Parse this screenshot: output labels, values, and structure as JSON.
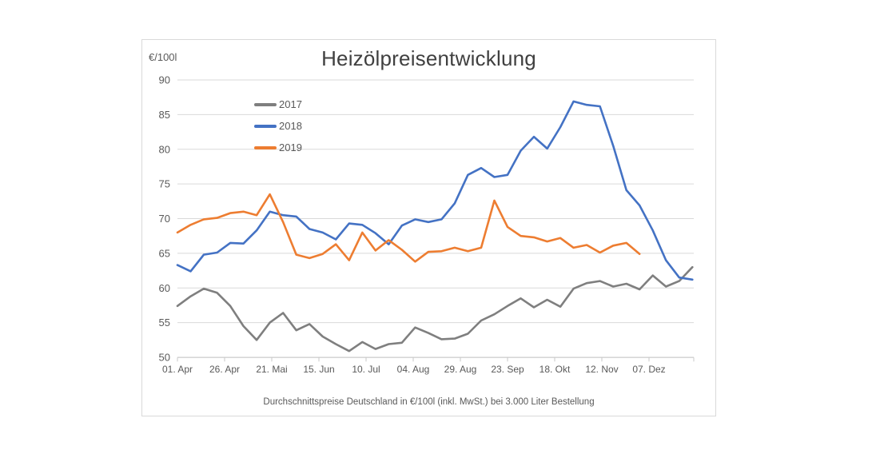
{
  "chart": {
    "background": "#ffffff",
    "card_border_color": "#d9d9d9",
    "gridline_color": "#d9d9d9",
    "text_color": "#595959",
    "title_color": "#404040"
  },
  "chart_data": {
    "type": "line",
    "title": "Heizölpreisentwicklung",
    "y_unit": "€/100l",
    "caption": "Durchschnittspreise Deutschland in €/100l (inkl. MwSt.) bei 3.000 Liter Bestellung",
    "xlabel": "",
    "ylabel": "€/100l",
    "ylim": [
      50,
      90
    ],
    "grid": true,
    "legend_position": "inside-top-left",
    "y_ticks": [
      90,
      85,
      80,
      75,
      70,
      65,
      60,
      55,
      50
    ],
    "x_tick_labels": [
      "01. Apr",
      "26. Apr",
      "21. Mai",
      "15. Jun",
      "10. Jul",
      "04. Aug",
      "29. Aug",
      "23. Sep",
      "18. Okt",
      "12. Nov",
      "07. Dez"
    ],
    "x_tick_days": [
      0,
      25,
      50,
      75,
      100,
      125,
      150,
      175,
      200,
      225,
      250
    ],
    "sample_interval_days": 7,
    "x_start_label": "01. Apr",
    "series": [
      {
        "name": "2017",
        "color": "#7f7f7f",
        "values": [
          57.4,
          58.8,
          59.9,
          59.3,
          57.4,
          54.5,
          52.5,
          55.0,
          56.4,
          53.9,
          54.8,
          53.0,
          51.9,
          50.9,
          52.2,
          51.2,
          51.9,
          52.1,
          54.3,
          53.5,
          52.6,
          52.7,
          53.4,
          55.3,
          56.2,
          57.4,
          58.5,
          57.2,
          58.3,
          57.3,
          59.9,
          60.7,
          61.0,
          60.2,
          60.6,
          59.8,
          61.8,
          60.2,
          61.0,
          63.0
        ]
      },
      {
        "name": "2018",
        "color": "#4472c4",
        "values": [
          63.3,
          62.4,
          64.8,
          65.1,
          66.5,
          66.4,
          68.3,
          71.0,
          70.5,
          70.3,
          68.5,
          68.0,
          67.0,
          69.3,
          69.1,
          67.9,
          66.3,
          69.0,
          69.9,
          69.5,
          69.9,
          72.2,
          76.3,
          77.3,
          76.0,
          76.3,
          79.8,
          81.8,
          80.1,
          83.2,
          86.9,
          86.4,
          86.2,
          80.5,
          74.1,
          71.9,
          68.3,
          64.0,
          61.5,
          61.2
        ]
      },
      {
        "name": "2019",
        "color": "#ed7d31",
        "values": [
          68.0,
          69.1,
          69.9,
          70.1,
          70.8,
          71.0,
          70.5,
          73.5,
          69.5,
          64.8,
          64.3,
          64.9,
          66.3,
          64.0,
          68.0,
          65.4,
          66.9,
          65.5,
          63.8,
          65.2,
          65.3,
          65.8,
          65.3,
          65.8,
          72.6,
          68.8,
          67.5,
          67.3,
          66.7,
          67.2,
          65.8,
          66.2,
          65.1,
          66.1,
          66.5,
          64.9
        ]
      }
    ]
  }
}
